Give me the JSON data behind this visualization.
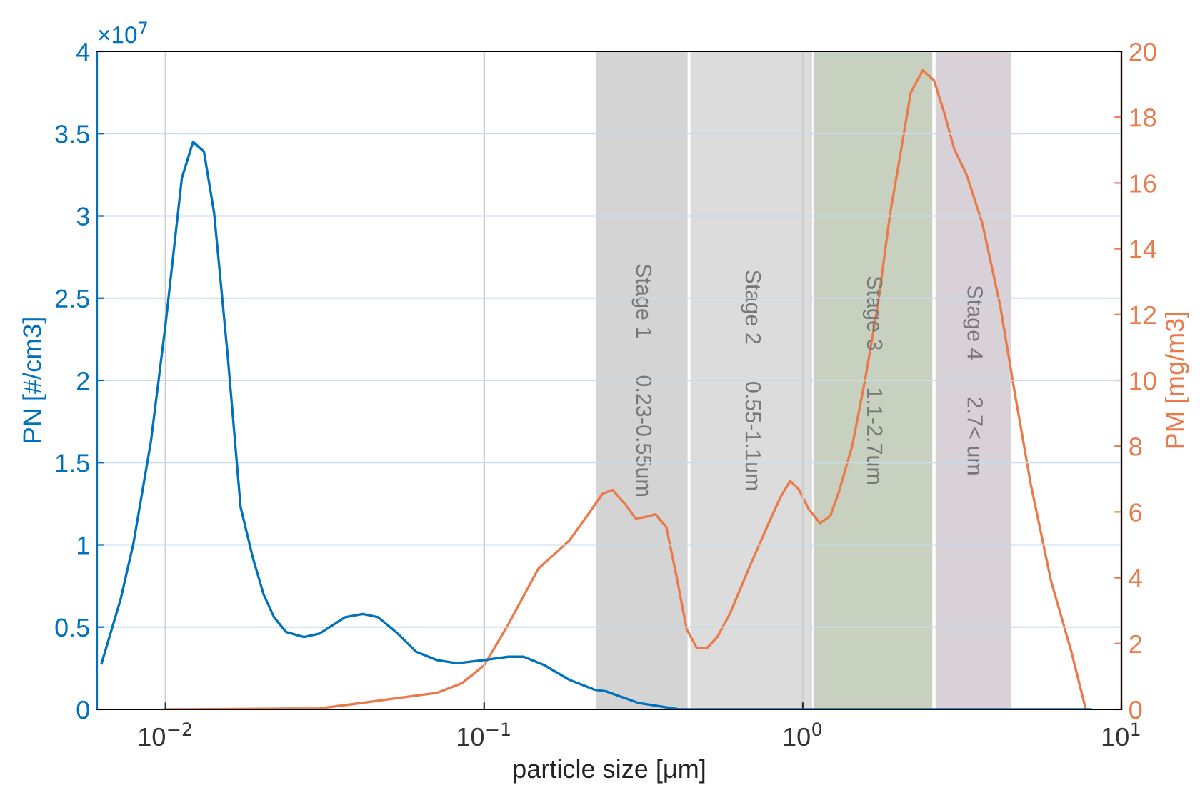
{
  "chart_data": {
    "type": "line",
    "xlabel": "particle size [μm]",
    "ylabel": "PN [#/cm3]",
    "y2label": "PM [mg/m3]",
    "log": "x",
    "xlim": [
      0.0061,
      10
    ],
    "xticks": [
      {
        "value": 0.01,
        "label": "10$^{−2}$"
      },
      {
        "value": 0.1,
        "label": "10$^{−1}$"
      },
      {
        "value": 1,
        "label": "10$^{0}$"
      },
      {
        "value": 10,
        "label": "10$^{1}$"
      }
    ],
    "ylim": [
      0,
      4
    ],
    "yticks": [
      0,
      0.5,
      1,
      1.5,
      2,
      2.5,
      3,
      3.5,
      4
    ],
    "y2lim": [
      0,
      20
    ],
    "y2ticks": [
      0,
      2,
      4,
      6,
      8,
      10,
      12,
      14,
      16,
      18,
      20
    ],
    "grid": true,
    "annotations": [
      "×10$^{7}$"
    ],
    "bands": [
      {
        "axis": "x",
        "from": 0.225,
        "to": 0.435,
        "label": "Stage 1      0.23-0.55um",
        "color": "#d4d4d4"
      },
      {
        "axis": "x",
        "from": 0.444,
        "to": 1.07,
        "label": "Stage 2      0.55-1.1um",
        "color": "#dcdcdc"
      },
      {
        "axis": "x",
        "from": 1.08,
        "to": 2.55,
        "label": "Stage 3      1.1-2.7um",
        "color": "#c8d0c0"
      },
      {
        "axis": "x",
        "from": 2.61,
        "to": 4.5,
        "label": "Stage 4      2.7< um",
        "color": "#d8d2d8"
      }
    ],
    "series": [
      {
        "color": "#0072bd",
        "x": [
          0.0063,
          0.00723,
          0.00793,
          0.009,
          0.01,
          0.01125,
          0.0122,
          0.0132,
          0.0142,
          0.01567,
          0.0172,
          0.0188,
          0.0203,
          0.0219,
          0.0239,
          0.0272,
          0.0304,
          0.0366,
          0.0416,
          0.0465,
          0.0529,
          0.0612,
          0.071,
          0.0822,
          0.1,
          0.119,
          0.133,
          0.154,
          0.185,
          0.222,
          0.241,
          0.304,
          0.41,
          1.0,
          8.0
        ],
        "values": [
          0.28,
          0.67,
          1.01,
          1.63,
          2.34,
          3.23,
          3.45,
          3.39,
          3.02,
          2.15,
          1.23,
          0.92,
          0.7,
          0.56,
          0.47,
          0.44,
          0.46,
          0.56,
          0.58,
          0.56,
          0.47,
          0.35,
          0.3,
          0.28,
          0.3,
          0.32,
          0.32,
          0.27,
          0.18,
          0.12,
          0.11,
          0.04,
          0.0,
          0.0,
          0.0
        ]
      },
      {
        "color": "#ea7a4a",
        "axis": "y2",
        "x": [
          0.01,
          0.0304,
          0.0408,
          0.0529,
          0.071,
          0.0853,
          0.1,
          0.119,
          0.148,
          0.185,
          0.214,
          0.235,
          0.253,
          0.277,
          0.299,
          0.321,
          0.345,
          0.373,
          0.401,
          0.432,
          0.465,
          0.5,
          0.539,
          0.59,
          0.684,
          0.778,
          0.853,
          0.912,
          0.97,
          1.045,
          1.133,
          1.22,
          1.3,
          1.43,
          1.57,
          1.72,
          1.88,
          2.03,
          2.18,
          2.38,
          2.58,
          2.77,
          2.99,
          3.27,
          3.66,
          4.16,
          4.65,
          5.19,
          6.01,
          6.97,
          7.73
        ],
        "values": [
          0.0,
          0.03,
          0.19,
          0.34,
          0.5,
          0.8,
          1.34,
          2.58,
          4.28,
          5.13,
          5.98,
          6.55,
          6.67,
          6.24,
          5.8,
          5.85,
          5.93,
          5.54,
          4.07,
          2.44,
          1.86,
          1.86,
          2.2,
          2.9,
          4.38,
          5.62,
          6.47,
          6.94,
          6.7,
          6.08,
          5.66,
          5.88,
          6.63,
          8.02,
          10.04,
          12.29,
          15.08,
          16.94,
          18.73,
          19.43,
          19.12,
          18.18,
          17.02,
          16.24,
          14.77,
          12.29,
          9.5,
          6.86,
          3.91,
          1.74,
          0.0
        ]
      }
    ]
  }
}
